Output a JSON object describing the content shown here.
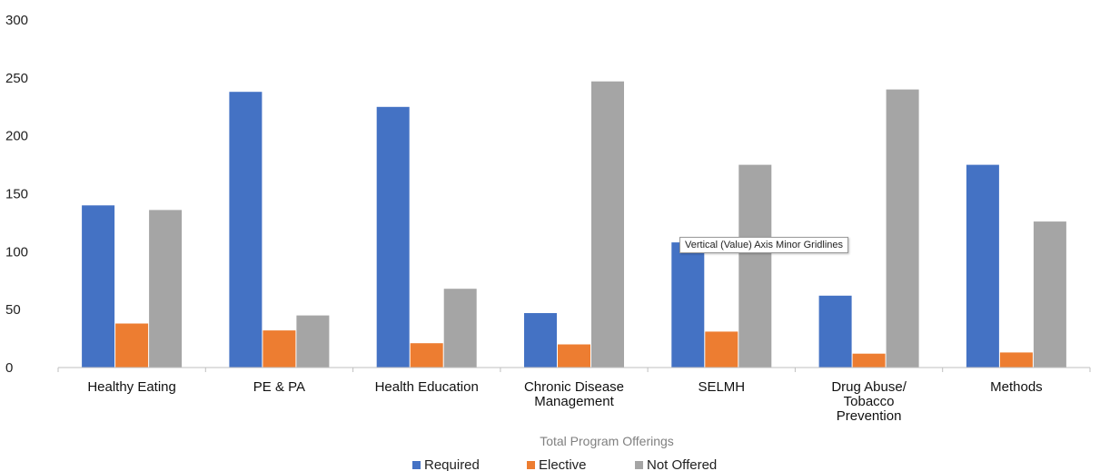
{
  "colors": {
    "required": "#4472c4",
    "elective": "#ed7d31",
    "not_offered": "#a5a5a5"
  },
  "tooltip": {
    "text": "Vertical (Value) Axis Minor Gridlines"
  },
  "chart_data": {
    "type": "bar",
    "categories": [
      [
        "Healthy Eating"
      ],
      [
        "PE & PA"
      ],
      [
        "Health Education"
      ],
      [
        "Chronic Disease",
        "Management"
      ],
      [
        "SELMH"
      ],
      [
        "Drug Abuse/",
        "Tobacco",
        "Prevention"
      ],
      [
        "Methods"
      ]
    ],
    "series": [
      {
        "name": "Required",
        "color": "#4472c4",
        "values": [
          140,
          238,
          225,
          47,
          108,
          62,
          175
        ]
      },
      {
        "name": "Elective",
        "color": "#ed7d31",
        "values": [
          38,
          32,
          21,
          20,
          31,
          12,
          13
        ]
      },
      {
        "name": "Not Offered",
        "color": "#a5a5a5",
        "values": [
          136,
          45,
          68,
          247,
          175,
          240,
          126
        ]
      }
    ],
    "xlabel": "Total Program Offerings",
    "ylabel": "",
    "ylim": [
      0,
      300
    ],
    "yticks": [
      "0",
      "50",
      "100",
      "150",
      "200",
      "250",
      "300"
    ],
    "grid": false,
    "legend": "bottom"
  }
}
